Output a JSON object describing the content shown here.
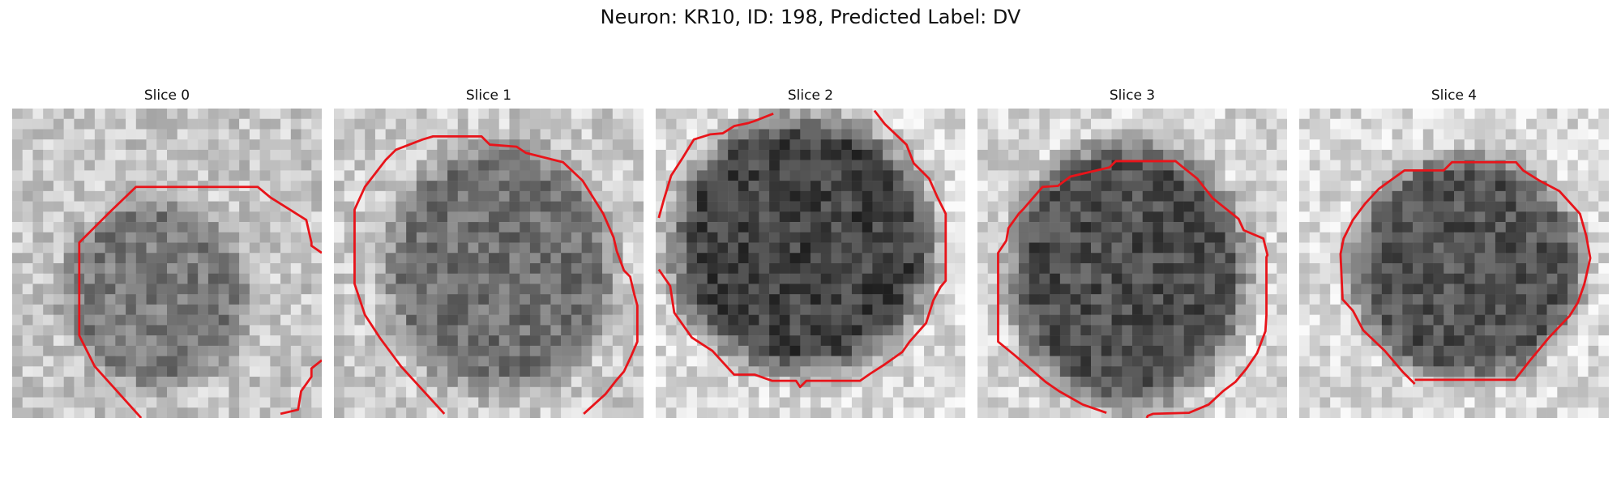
{
  "figure": {
    "title": "Neuron: KR10, ID: 198, Predicted Label: DV"
  },
  "panels": [
    {
      "title": "Slice 0",
      "image": "grayscale-microscopy-slice",
      "brightness": [
        0.78,
        0.48
      ],
      "contour_visible": true
    },
    {
      "title": "Slice 1",
      "image": "grayscale-microscopy-slice",
      "brightness": [
        0.8,
        0.44
      ],
      "contour_visible": true
    },
    {
      "title": "Slice 2",
      "image": "grayscale-microscopy-slice",
      "brightness": [
        0.86,
        0.26
      ],
      "contour_visible": true
    },
    {
      "title": "Slice 3",
      "image": "grayscale-microscopy-slice",
      "brightness": [
        0.84,
        0.3
      ],
      "contour_visible": true
    },
    {
      "title": "Slice 4",
      "image": "grayscale-microscopy-slice",
      "brightness": [
        0.86,
        0.32
      ],
      "contour_visible": true
    }
  ],
  "colors": {
    "contour": "#e8141a",
    "background": "#ffffff"
  }
}
